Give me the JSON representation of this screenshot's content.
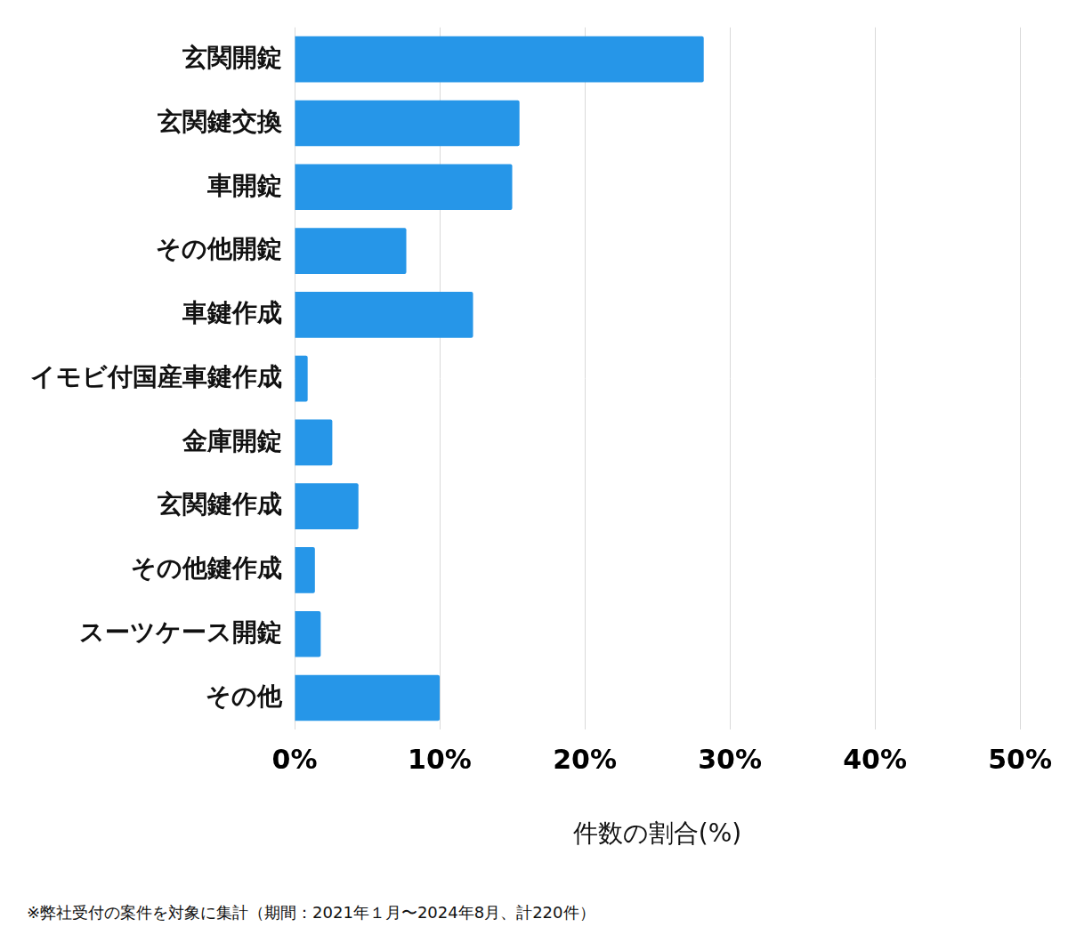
{
  "chart_data": {
    "type": "bar",
    "orientation": "horizontal",
    "categories": [
      "玄関開錠",
      "玄関鍵交換",
      "車開錠",
      "その他開錠",
      "車鍵作成",
      "イモビ付国産車鍵作成",
      "金庫開錠",
      "玄関鍵作成",
      "その他鍵作成",
      "スーツケース開錠",
      "その他"
    ],
    "values": [
      28.2,
      15.5,
      15.0,
      7.7,
      12.3,
      0.9,
      2.6,
      4.4,
      1.4,
      1.8,
      10.0
    ],
    "color": "#2696e8",
    "xlabel": "件数の割合(%)",
    "xlim": [
      0,
      50
    ],
    "xticks": [
      {
        "value": 0,
        "label": "0%"
      },
      {
        "value": 10,
        "label": "10%"
      },
      {
        "value": 20,
        "label": "20%"
      },
      {
        "value": 30,
        "label": "30%"
      },
      {
        "value": 40,
        "label": "40%"
      },
      {
        "value": 50,
        "label": "50%"
      }
    ],
    "grid": true,
    "footnote": "※弊社受付の案件を対象に集計（期間：2021年１月〜2024年8月、計220件）"
  }
}
